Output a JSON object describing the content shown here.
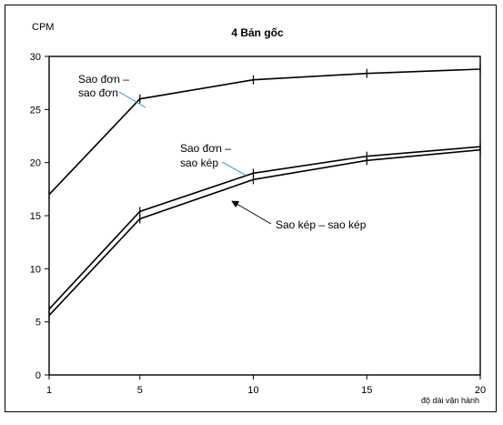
{
  "chart_data": {
    "type": "line",
    "title": "4 Bản gốc",
    "ylabel": "CPM",
    "xlabel": "độ dài vận hành",
    "x": [
      1,
      5,
      10,
      15,
      20
    ],
    "ylim": [
      0,
      30
    ],
    "yticks": [
      0,
      5,
      10,
      15,
      20,
      25,
      30
    ],
    "grid": false,
    "series": [
      {
        "name": "Sao đơn – sao đơn",
        "x": [
          1,
          5,
          10,
          15,
          20
        ],
        "values": [
          17,
          26,
          27.8,
          28.4,
          28.8
        ]
      },
      {
        "name": "Sao đơn – sao kép",
        "x": [
          1,
          5,
          10,
          15,
          20
        ],
        "values": [
          6.2,
          15.4,
          19.0,
          20.6,
          21.5
        ]
      },
      {
        "name": "Sao kép – sao kép",
        "x": [
          1,
          5,
          10,
          15,
          20
        ],
        "values": [
          5.6,
          14.7,
          18.4,
          20.2,
          21.2
        ]
      }
    ],
    "annotations": [
      {
        "lines": [
          "Sao đơn –",
          "sao đơn"
        ]
      },
      {
        "lines": [
          "Sao đơn –",
          "sao kép"
        ]
      },
      {
        "lines": [
          "Sao kép – sao kép"
        ]
      }
    ]
  }
}
